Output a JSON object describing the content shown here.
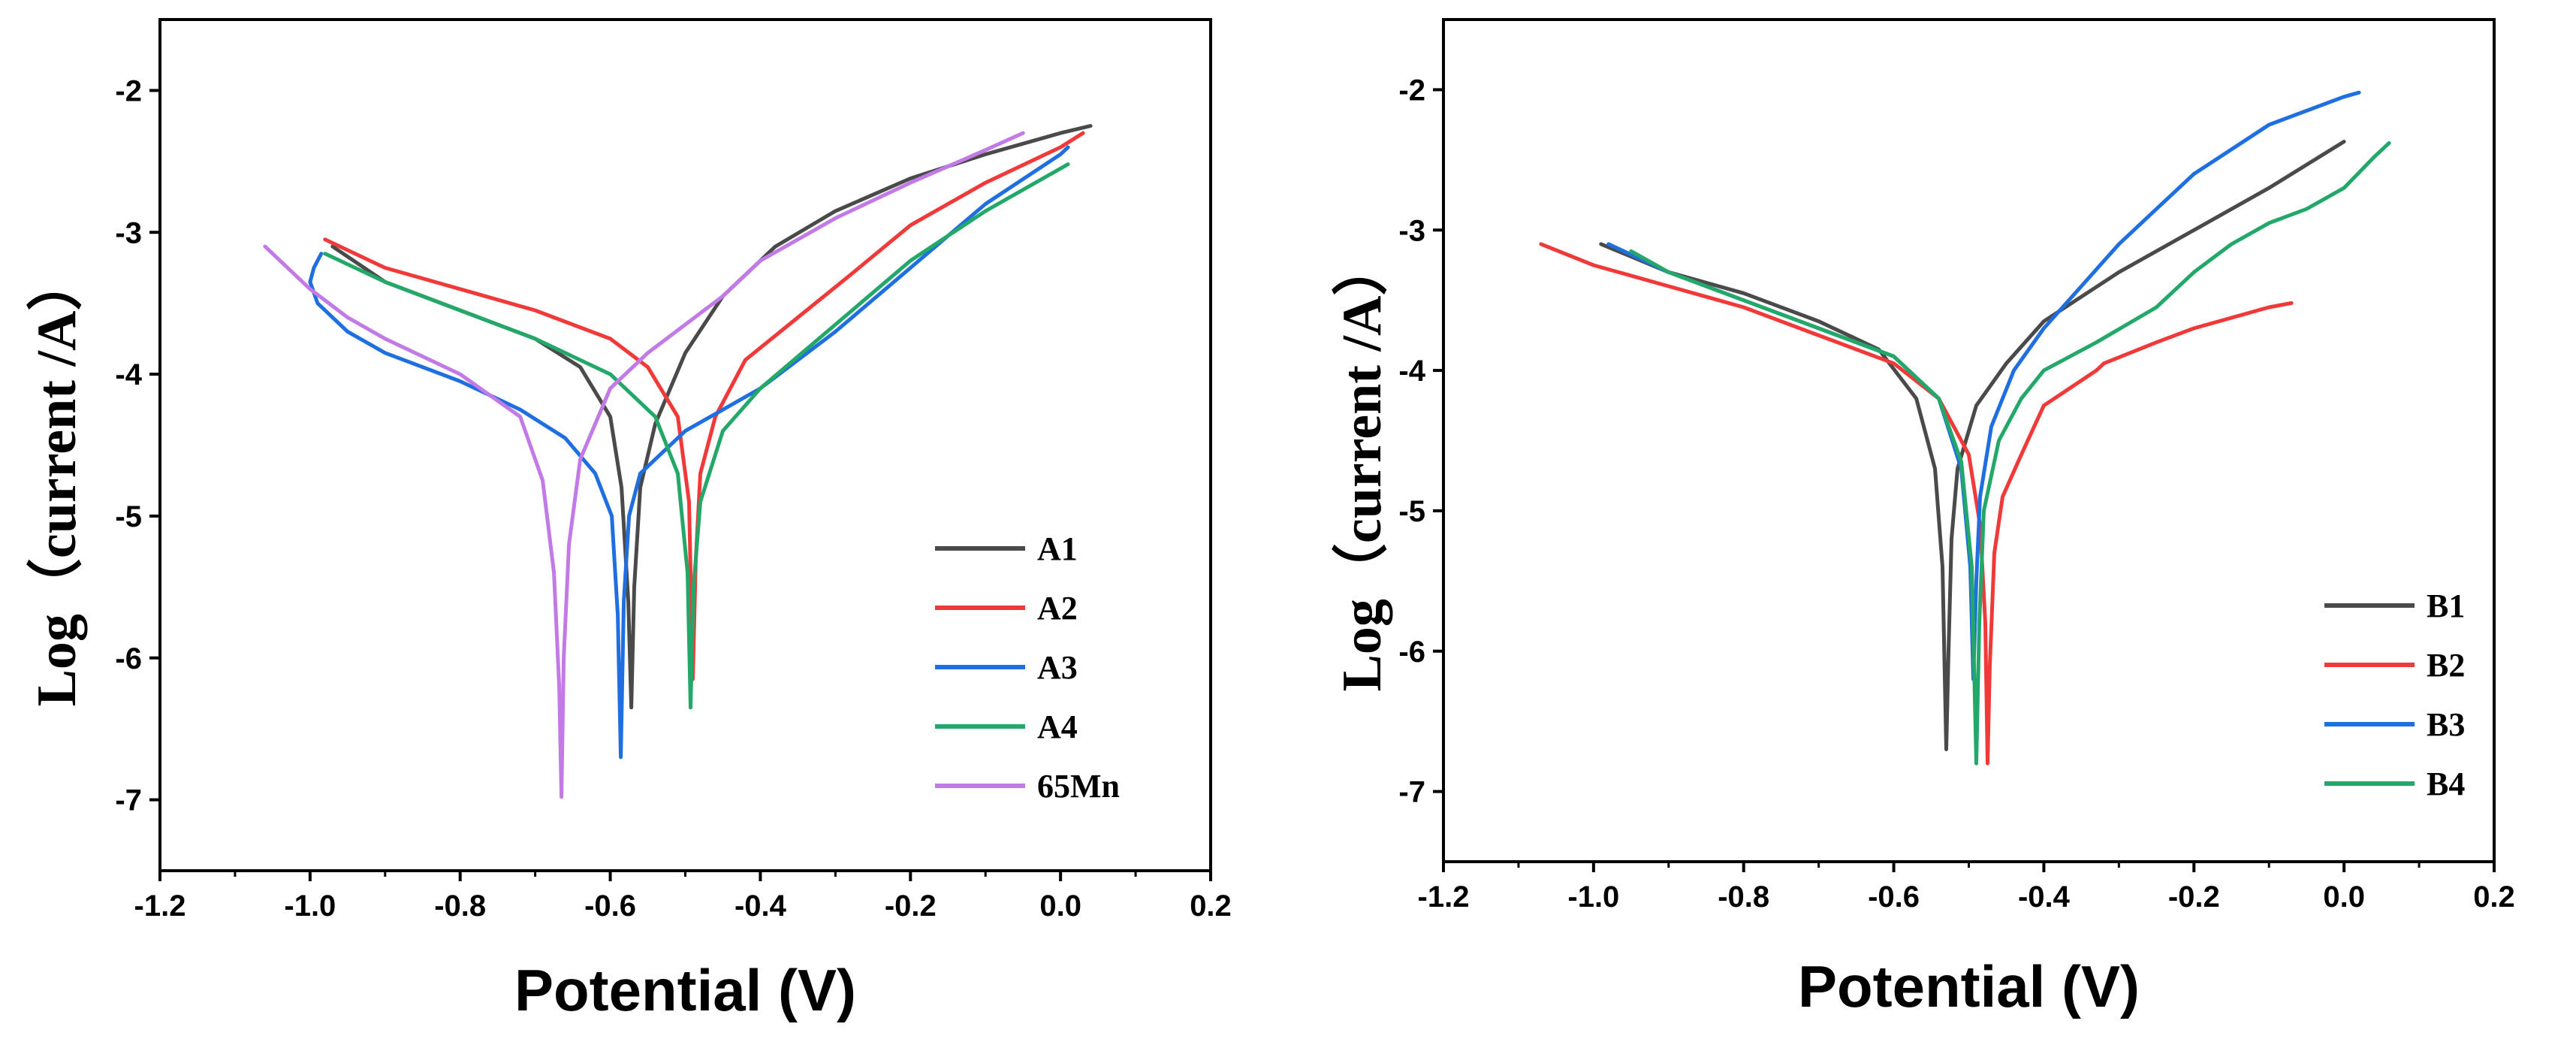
{
  "chart_data": [
    {
      "type": "line",
      "xlabel": "Potential (V)",
      "ylabel": "Log（current /A）",
      "xlim": [
        -1.2,
        0.2
      ],
      "ylim": [
        -7.5,
        -1.5
      ],
      "xticks": [
        -1.2,
        -1.0,
        -0.8,
        -0.6,
        -0.4,
        -0.2,
        0.0,
        0.2
      ],
      "xtick_labels": [
        "-1.2",
        "-1.0",
        "-0.8",
        "-0.6",
        "-0.4",
        "-0.2",
        "0.0",
        "0.2"
      ],
      "yticks": [
        -7,
        -6,
        -5,
        -4,
        -3,
        -2
      ],
      "ytick_labels": [
        "-7",
        "-6",
        "-5",
        "-4",
        "-3",
        "-2"
      ],
      "legend_position": "bottom-right",
      "series": [
        {
          "name": "A1",
          "color": "#4a4a4a",
          "x": [
            -0.97,
            -0.9,
            -0.8,
            -0.7,
            -0.64,
            -0.6,
            -0.585,
            -0.576,
            -0.572,
            -0.568,
            -0.56,
            -0.54,
            -0.5,
            -0.45,
            -0.38,
            -0.3,
            -0.2,
            -0.1,
            0.0,
            0.04
          ],
          "y": [
            -3.1,
            -3.35,
            -3.55,
            -3.75,
            -3.95,
            -4.3,
            -4.8,
            -5.6,
            -6.35,
            -5.5,
            -4.8,
            -4.35,
            -3.85,
            -3.45,
            -3.1,
            -2.85,
            -2.62,
            -2.45,
            -2.3,
            -2.25
          ]
        },
        {
          "name": "A2",
          "color": "#f03a3a",
          "x": [
            -0.98,
            -0.9,
            -0.8,
            -0.7,
            -0.6,
            -0.55,
            -0.51,
            -0.495,
            -0.49,
            -0.486,
            -0.48,
            -0.46,
            -0.42,
            -0.35,
            -0.28,
            -0.2,
            -0.1,
            0.0,
            0.03
          ],
          "y": [
            -3.05,
            -3.25,
            -3.4,
            -3.55,
            -3.75,
            -3.95,
            -4.3,
            -4.9,
            -6.15,
            -5.3,
            -4.7,
            -4.3,
            -3.9,
            -3.6,
            -3.3,
            -2.95,
            -2.65,
            -2.4,
            -2.3
          ]
        },
        {
          "name": "A3",
          "color": "#1f6fe0",
          "x": [
            -0.985,
            -0.995,
            -1.0,
            -0.99,
            -0.95,
            -0.9,
            -0.8,
            -0.72,
            -0.66,
            -0.62,
            -0.598,
            -0.59,
            -0.586,
            -0.582,
            -0.575,
            -0.56,
            -0.5,
            -0.45,
            -0.4,
            -0.3,
            -0.2,
            -0.1,
            0.0,
            0.01
          ],
          "y": [
            -3.15,
            -3.25,
            -3.35,
            -3.5,
            -3.7,
            -3.85,
            -4.05,
            -4.25,
            -4.45,
            -4.7,
            -5.0,
            -5.7,
            -6.7,
            -5.6,
            -5.0,
            -4.7,
            -4.4,
            -4.25,
            -4.1,
            -3.7,
            -3.25,
            -2.8,
            -2.45,
            -2.4
          ]
        },
        {
          "name": "A4",
          "color": "#23a869",
          "x": [
            -0.98,
            -0.9,
            -0.8,
            -0.7,
            -0.6,
            -0.54,
            -0.51,
            -0.497,
            -0.493,
            -0.489,
            -0.48,
            -0.45,
            -0.4,
            -0.3,
            -0.2,
            -0.1,
            0.0,
            0.01
          ],
          "y": [
            -3.15,
            -3.35,
            -3.55,
            -3.75,
            -4.0,
            -4.3,
            -4.7,
            -5.4,
            -6.35,
            -5.5,
            -4.9,
            -4.4,
            -4.1,
            -3.65,
            -3.2,
            -2.85,
            -2.55,
            -2.52
          ]
        },
        {
          "name": "65Mn",
          "color": "#c27ae6",
          "x": [
            -1.06,
            -1.0,
            -0.95,
            -0.9,
            -0.8,
            -0.72,
            -0.69,
            -0.675,
            -0.668,
            -0.665,
            -0.662,
            -0.655,
            -0.64,
            -0.6,
            -0.55,
            -0.5,
            -0.45,
            -0.4,
            -0.3,
            -0.2,
            -0.1,
            -0.05
          ],
          "y": [
            -3.1,
            -3.4,
            -3.6,
            -3.75,
            -4.0,
            -4.3,
            -4.75,
            -5.4,
            -6.2,
            -6.98,
            -6.0,
            -5.2,
            -4.6,
            -4.1,
            -3.85,
            -3.65,
            -3.45,
            -3.2,
            -2.9,
            -2.65,
            -2.42,
            -2.3
          ]
        }
      ]
    },
    {
      "type": "line",
      "xlabel": "Potential (V)",
      "ylabel": "Log（current /A）",
      "xlim": [
        -1.2,
        0.2
      ],
      "ylim": [
        -7.5,
        -1.5
      ],
      "xticks": [
        -1.2,
        -1.0,
        -0.8,
        -0.6,
        -0.4,
        -0.2,
        0.0,
        0.2
      ],
      "xtick_labels": [
        "-1.2",
        "-1.0",
        "-0.8",
        "-0.6",
        "-0.4",
        "-0.2",
        "0.0",
        "0.2"
      ],
      "yticks": [
        -7,
        -6,
        -5,
        -4,
        -3,
        -2
      ],
      "ytick_labels": [
        "-7",
        "-6",
        "-5",
        "-4",
        "-3",
        "-2"
      ],
      "legend_position": "bottom-right",
      "series": [
        {
          "name": "B1",
          "color": "#4a4a4a",
          "x": [
            -0.99,
            -0.9,
            -0.8,
            -0.7,
            -0.62,
            -0.57,
            -0.545,
            -0.535,
            -0.53,
            -0.527,
            -0.523,
            -0.515,
            -0.49,
            -0.45,
            -0.4,
            -0.3,
            -0.2,
            -0.1,
            0.0
          ],
          "y": [
            -3.1,
            -3.3,
            -3.45,
            -3.65,
            -3.85,
            -4.2,
            -4.7,
            -5.4,
            -6.7,
            -6.0,
            -5.2,
            -4.7,
            -4.25,
            -3.95,
            -3.65,
            -3.3,
            -3.0,
            -2.7,
            -2.37
          ]
        },
        {
          "name": "B2",
          "color": "#f03a3a",
          "x": [
            -1.07,
            -1.0,
            -0.9,
            -0.8,
            -0.7,
            -0.6,
            -0.54,
            -0.5,
            -0.485,
            -0.478,
            -0.475,
            -0.472,
            -0.466,
            -0.455,
            -0.43,
            -0.4,
            -0.33,
            -0.32,
            -0.25,
            -0.2,
            -0.1,
            -0.07
          ],
          "y": [
            -3.1,
            -3.25,
            -3.4,
            -3.55,
            -3.75,
            -3.95,
            -4.2,
            -4.6,
            -5.1,
            -5.8,
            -6.8,
            -6.1,
            -5.3,
            -4.9,
            -4.6,
            -4.25,
            -4.0,
            -3.95,
            -3.8,
            -3.7,
            -3.55,
            -3.52
          ]
        },
        {
          "name": "B3",
          "color": "#1f6fe0",
          "x": [
            -0.98,
            -0.9,
            -0.8,
            -0.7,
            -0.6,
            -0.54,
            -0.51,
            -0.498,
            -0.494,
            -0.49,
            -0.485,
            -0.47,
            -0.44,
            -0.4,
            -0.35,
            -0.3,
            -0.25,
            -0.2,
            -0.1,
            0.0,
            0.02
          ],
          "y": [
            -3.1,
            -3.3,
            -3.5,
            -3.7,
            -3.9,
            -4.2,
            -4.7,
            -5.4,
            -6.2,
            -5.5,
            -4.9,
            -4.4,
            -4.0,
            -3.7,
            -3.4,
            -3.1,
            -2.85,
            -2.6,
            -2.25,
            -2.05,
            -2.02
          ]
        },
        {
          "name": "B4",
          "color": "#23a869",
          "x": [
            -0.95,
            -0.9,
            -0.8,
            -0.7,
            -0.6,
            -0.54,
            -0.51,
            -0.496,
            -0.49,
            -0.486,
            -0.48,
            -0.46,
            -0.43,
            -0.4,
            -0.33,
            -0.25,
            -0.2,
            -0.15,
            -0.1,
            -0.05,
            0.0,
            0.04,
            0.06
          ],
          "y": [
            -3.15,
            -3.3,
            -3.5,
            -3.7,
            -3.9,
            -4.2,
            -4.65,
            -5.4,
            -6.8,
            -5.8,
            -5.0,
            -4.5,
            -4.2,
            -4.0,
            -3.8,
            -3.55,
            -3.3,
            -3.1,
            -2.95,
            -2.85,
            -2.7,
            -2.48,
            -2.38
          ]
        }
      ]
    }
  ]
}
